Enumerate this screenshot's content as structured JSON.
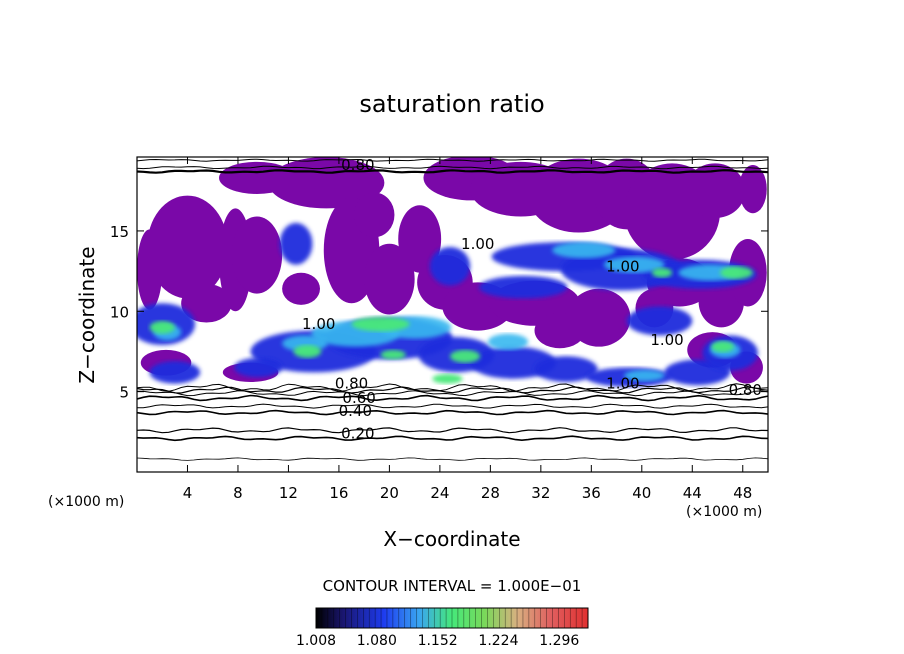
{
  "chart_data": {
    "type": "heatmap",
    "title": "saturation ratio",
    "xlabel": "X−coordinate",
    "ylabel": "Z−coordinate",
    "x_unit_left": "(×1000 m)",
    "x_unit_right": "(×1000 m)",
    "xlim": [
      0,
      50
    ],
    "ylim": [
      0,
      19.6
    ],
    "x_ticks": [
      4,
      8,
      12,
      16,
      20,
      24,
      28,
      32,
      36,
      40,
      44,
      48
    ],
    "y_ticks": [
      5,
      10,
      15
    ],
    "contour_interval_text": "CONTOUR INTERVAL = 1.000E−01",
    "colorbar": {
      "range": [
        1.008,
        1.33
      ],
      "tick_labels": [
        "1.008",
        "1.080",
        "1.152",
        "1.224",
        "1.296"
      ],
      "tick_values": [
        1.008,
        1.08,
        1.152,
        1.224,
        1.296
      ]
    },
    "contour_labels": [
      {
        "text": "0.20",
        "x": 17.5,
        "z": 2.4
      },
      {
        "text": "0.40",
        "x": 17.3,
        "z": 3.8
      },
      {
        "text": "0.60",
        "x": 17.6,
        "z": 4.6
      },
      {
        "text": "0.80",
        "x": 17.0,
        "z": 5.5
      },
      {
        "text": "0.80",
        "x": 48.2,
        "z": 5.1
      },
      {
        "text": "0.80",
        "x": 17.5,
        "z": 19.1
      },
      {
        "text": "1.00",
        "x": 27.0,
        "z": 14.2
      },
      {
        "text": "1.00",
        "x": 38.5,
        "z": 5.5
      },
      {
        "text": "1.00",
        "x": 38.5,
        "z": 12.8
      },
      {
        "text": "1.00",
        "x": 42.0,
        "z": 8.2
      },
      {
        "text": "1.00",
        "x": 14.4,
        "z": 9.2
      }
    ],
    "regions": {
      "lower_level_contours": [
        0.2,
        0.4,
        0.6,
        0.8
      ],
      "purple_value": 1.008,
      "supersaturated_layer_z": [
        5.5,
        9.5
      ],
      "upper_cloud_z": [
        11,
        14.5
      ]
    },
    "colors": {
      "purple": "#7a08a8",
      "blue": "#1a2cdc",
      "cyan": "#38b8f0",
      "green": "#4ae87a",
      "bg": "#ffffff"
    }
  }
}
